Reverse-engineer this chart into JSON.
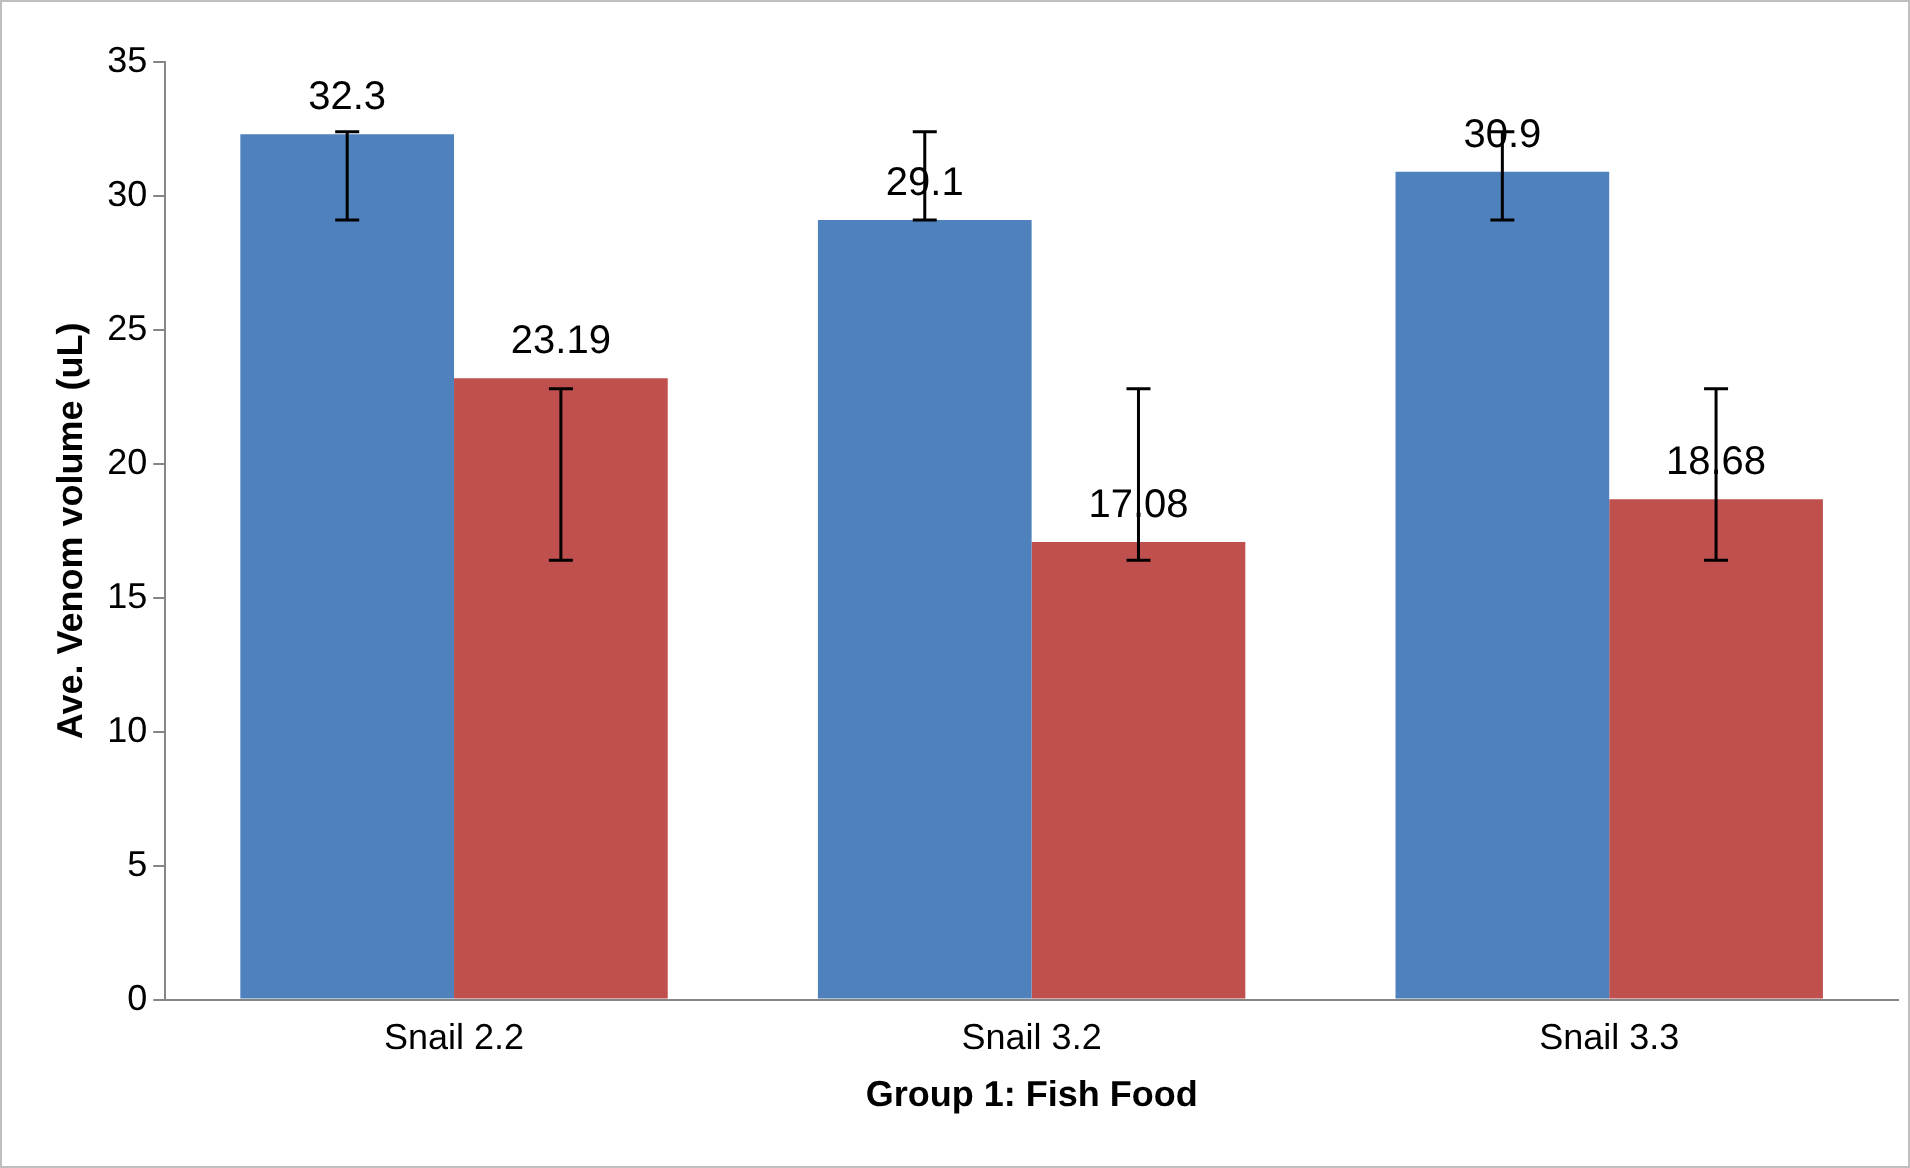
{
  "chart_data": {
    "type": "bar",
    "xlabel": "Group 1: Fish Food",
    "ylabel": "Ave. Venom volume (uL)",
    "categories": [
      "Snail 2.2",
      "Snail 3.2",
      "Snail 3.3"
    ],
    "series": [
      {
        "color": "#4f81bd",
        "values": [
          32.3,
          29.1,
          30.9
        ],
        "errors": [
          [
            29.1,
            32.4
          ],
          [
            29.1,
            32.4
          ],
          [
            29.1,
            32.4
          ]
        ]
      },
      {
        "color": "#c0504d",
        "values": [
          23.19,
          17.08,
          18.68
        ],
        "errors": [
          [
            16.4,
            22.8
          ],
          [
            16.4,
            22.8
          ],
          [
            16.4,
            22.8
          ]
        ]
      }
    ],
    "ylim": [
      0,
      35
    ],
    "yticks": [
      0,
      5,
      10,
      15,
      20,
      25,
      30,
      35
    ],
    "grid": false,
    "legend": false,
    "data_labels": true
  }
}
